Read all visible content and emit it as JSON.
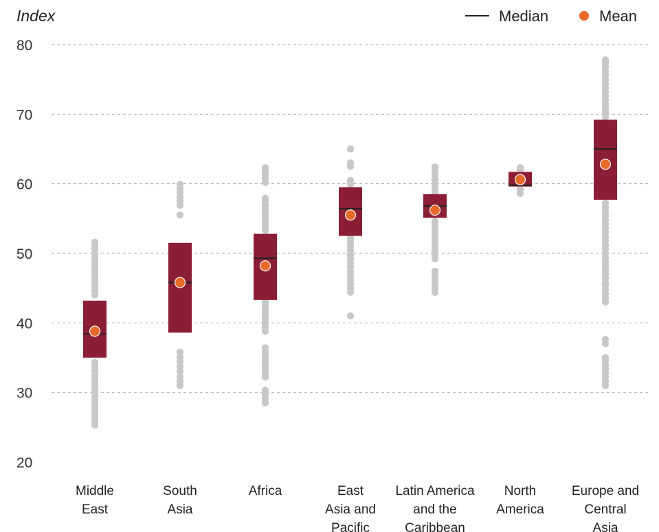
{
  "chart_data": {
    "type": "boxplot",
    "ylabel": "Index",
    "ylim": [
      20,
      80
    ],
    "yticks": [
      20,
      30,
      40,
      50,
      60,
      70,
      80
    ],
    "grid": "horizontal dashed",
    "legend": {
      "placement": "top-right",
      "entries": [
        {
          "label": "Median",
          "marker": "line"
        },
        {
          "label": "Mean",
          "marker": "dot"
        }
      ]
    },
    "colors": {
      "box": "#8b1e34",
      "median": "#222222",
      "mean": "#e8692a",
      "points": "#c8c8c8",
      "grid": "#aaaaaa"
    },
    "categories": [
      {
        "lines": [
          "Middle",
          "East"
        ],
        "q1": 35,
        "q3": 43.2,
        "median": 38.4,
        "mean": 38.8,
        "points": [
          25.3,
          25.9,
          26.5,
          27.1,
          27.7,
          28.3,
          28.9,
          29.5,
          30.1,
          30.7,
          31.3,
          31.9,
          32.5,
          33.1,
          33.7,
          34.3,
          44.0,
          44.6,
          45.2,
          45.8,
          46.4,
          47.0,
          47.6,
          48.2,
          48.8,
          49.4,
          50.0,
          50.6,
          51.2,
          51.6
        ]
      },
      {
        "lines": [
          "South",
          "Asia"
        ],
        "q1": 38.6,
        "q3": 51.5,
        "median": 45.8,
        "mean": 45.8,
        "points": [
          31.0,
          31.6,
          32.2,
          33.0,
          33.7,
          34.4,
          35.1,
          35.8,
          55.5,
          56.9,
          57.5,
          58.1,
          58.7,
          59.3,
          59.9
        ]
      },
      {
        "lines": [
          "Africa"
        ],
        "q1": 43.3,
        "q3": 52.8,
        "median": 49.3,
        "mean": 48.2,
        "points": [
          28.5,
          29.1,
          29.7,
          30.3,
          32.2,
          32.8,
          33.4,
          34.0,
          34.6,
          35.2,
          35.8,
          36.4,
          38.8,
          39.4,
          40.0,
          40.6,
          41.2,
          41.8,
          42.4,
          43.0,
          53.3,
          53.9,
          54.5,
          55.1,
          55.7,
          56.3,
          56.9,
          57.5,
          57.9,
          60.2,
          60.8,
          61.4,
          62.0,
          62.3
        ]
      },
      {
        "lines": [
          "East",
          "Asia and",
          "Pacific"
        ],
        "q1": 52.5,
        "q3": 59.5,
        "median": 56.4,
        "mean": 55.5,
        "points": [
          41.0,
          44.4,
          45.0,
          45.6,
          46.2,
          46.8,
          47.4,
          48.0,
          48.6,
          49.2,
          49.8,
          50.4,
          51.0,
          51.6,
          52.2,
          60.0,
          60.5,
          62.5,
          63.0,
          65.0
        ]
      },
      {
        "lines": [
          "Latin America",
          "and the",
          "Caribbean"
        ],
        "q1": 55.1,
        "q3": 58.5,
        "median": 56.8,
        "mean": 56.2,
        "points": [
          44.4,
          45.0,
          45.6,
          46.2,
          46.8,
          47.4,
          49.2,
          49.8,
          50.4,
          51.0,
          51.6,
          52.2,
          52.8,
          53.4,
          54.0,
          54.6,
          58.8,
          59.4,
          60.0,
          60.6,
          61.2,
          61.8,
          62.4
        ]
      },
      {
        "lines": [
          "North",
          "America"
        ],
        "q1": 59.6,
        "q3": 61.7,
        "median": 59.8,
        "mean": 60.6,
        "points": [
          58.6,
          59.2,
          62.0,
          62.3
        ]
      },
      {
        "lines": [
          "Europe and",
          "Central",
          "Asia"
        ],
        "q1": 57.7,
        "q3": 69.2,
        "median": 65.0,
        "mean": 62.8,
        "points": [
          31.0,
          31.6,
          32.2,
          32.8,
          33.4,
          34.0,
          34.6,
          35.0,
          37.0,
          37.6,
          43.0,
          43.6,
          44.2,
          44.8,
          45.4,
          45.8,
          46.4,
          47.0,
          47.6,
          48.2,
          48.8,
          49.4,
          50.0,
          50.6,
          51.2,
          51.8,
          52.4,
          53.0,
          53.6,
          54.2,
          54.8,
          55.4,
          56.0,
          56.6,
          57.2,
          69.6,
          70.2,
          70.8,
          71.4,
          72.0,
          72.6,
          73.2,
          73.8,
          74.4,
          75.0,
          75.6,
          76.2,
          76.8,
          77.4,
          77.8
        ]
      }
    ]
  }
}
